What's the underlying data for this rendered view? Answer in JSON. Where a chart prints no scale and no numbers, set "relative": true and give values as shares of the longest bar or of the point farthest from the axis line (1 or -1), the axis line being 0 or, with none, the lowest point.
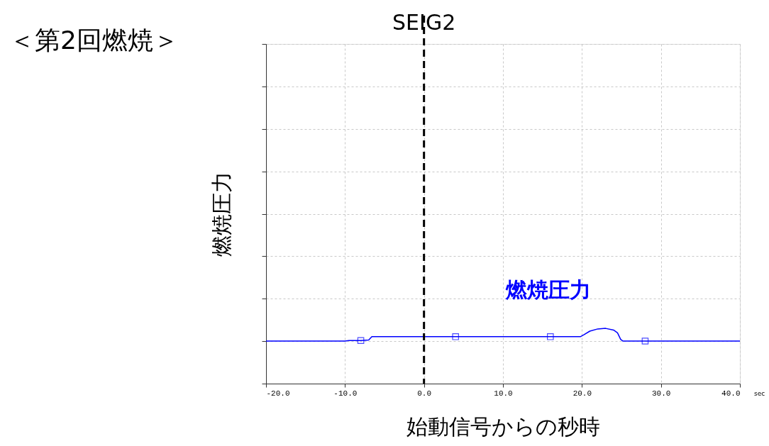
{
  "chart_data": {
    "type": "line",
    "title": "＜第2回燃焼＞",
    "xlabel": "始動信号からの秒時",
    "ylabel": "燃焼圧力",
    "relative": true,
    "xlim": [
      -20,
      40
    ],
    "xticks": [
      {
        "value": -20,
        "label": "-20.0"
      },
      {
        "value": -10,
        "label": "-10.0"
      },
      {
        "value": 0,
        "label": "0.0"
      },
      {
        "value": 10,
        "label": "10.0"
      },
      {
        "value": 20,
        "label": "20.0"
      },
      {
        "value": 30,
        "label": "30.0"
      },
      {
        "value": 40,
        "label": "40.0"
      }
    ],
    "series": [
      {
        "name": "燃焼圧力",
        "color": "#0000ff",
        "x": [
          -20,
          -10,
          -9.5,
          -8,
          -7,
          -6.6,
          0,
          19.8,
          20.2,
          21,
          22,
          23,
          24,
          24.5,
          24.9,
          25.2,
          40
        ],
        "values": [
          0.77,
          0.77,
          0.78,
          0.78,
          0.79,
          0.85,
          0.85,
          0.85,
          0.88,
          0.95,
          0.99,
          1.0,
          0.97,
          0.92,
          0.8,
          0.77,
          0.77
        ]
      },
      {
        "type": "scatter",
        "color": "#0000ff",
        "marker": "square",
        "x": [
          -8,
          4,
          16,
          28
        ],
        "values": [
          0.78,
          0.85,
          0.85,
          0.77
        ]
      }
    ],
    "marker": "none",
    "line_style": "solid",
    "grid": true,
    "legend": false,
    "ref_lines": [
      {
        "axis": "x",
        "value": 0,
        "label": "SEIG2",
        "color": "#000000",
        "line_style": "dashed"
      }
    ],
    "annotations": [
      "sec"
    ]
  }
}
